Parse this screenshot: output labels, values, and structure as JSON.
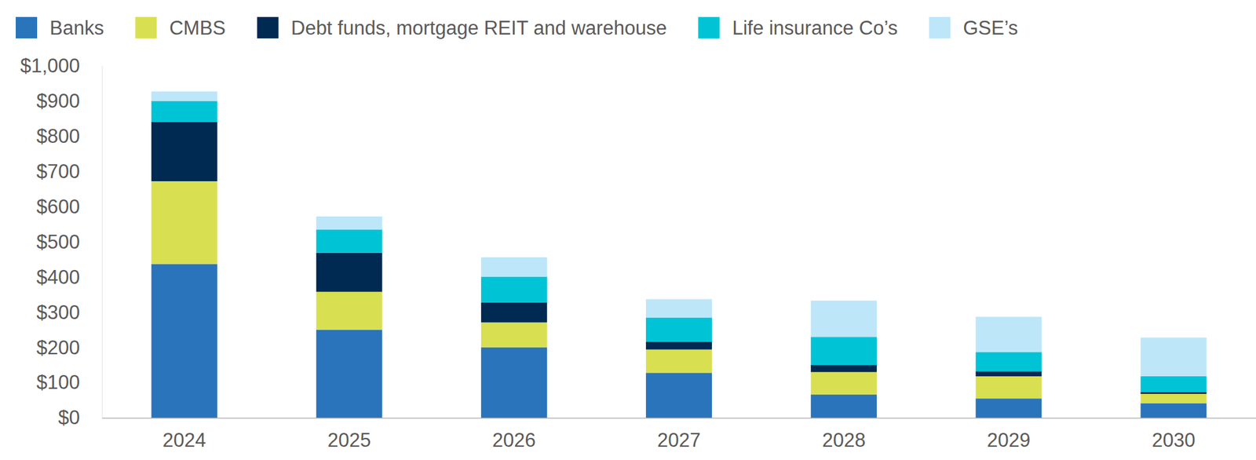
{
  "chart_data": {
    "type": "bar",
    "stacked": true,
    "legend": "top-left",
    "grid": false,
    "categories": [
      "2024",
      "2025",
      "2026",
      "2027",
      "2028",
      "2029",
      "2030"
    ],
    "series": [
      {
        "name": "Banks",
        "color": "#2a74bb",
        "values": [
          437,
          250,
          200,
          128,
          66,
          55,
          41
        ]
      },
      {
        "name": "CMBS",
        "color": "#d8e052",
        "values": [
          235,
          108,
          71,
          66,
          64,
          63,
          27
        ]
      },
      {
        "name": "Debt funds, mortgage REIT and warehouse",
        "color": "#012a52",
        "values": [
          168,
          111,
          57,
          22,
          20,
          14,
          5
        ]
      },
      {
        "name": "Life insurance Co’s",
        "color": "#00c4d6",
        "values": [
          60,
          66,
          73,
          69,
          80,
          55,
          45
        ]
      },
      {
        "name": "GSE’s",
        "color": "#bde6f9",
        "values": [
          27,
          37,
          55,
          52,
          103,
          100,
          110
        ]
      }
    ],
    "ylim": [
      0,
      1000
    ],
    "yticks": [
      {
        "value": 0,
        "label": "$0"
      },
      {
        "value": 100,
        "label": "$100"
      },
      {
        "value": 200,
        "label": "$200"
      },
      {
        "value": 300,
        "label": "$300"
      },
      {
        "value": 400,
        "label": "$400"
      },
      {
        "value": 500,
        "label": "$500"
      },
      {
        "value": 600,
        "label": "$600"
      },
      {
        "value": 700,
        "label": "$700"
      },
      {
        "value": 800,
        "label": "$800"
      },
      {
        "value": 900,
        "label": "$900"
      },
      {
        "value": 1000,
        "label": "$1,000"
      }
    ]
  }
}
